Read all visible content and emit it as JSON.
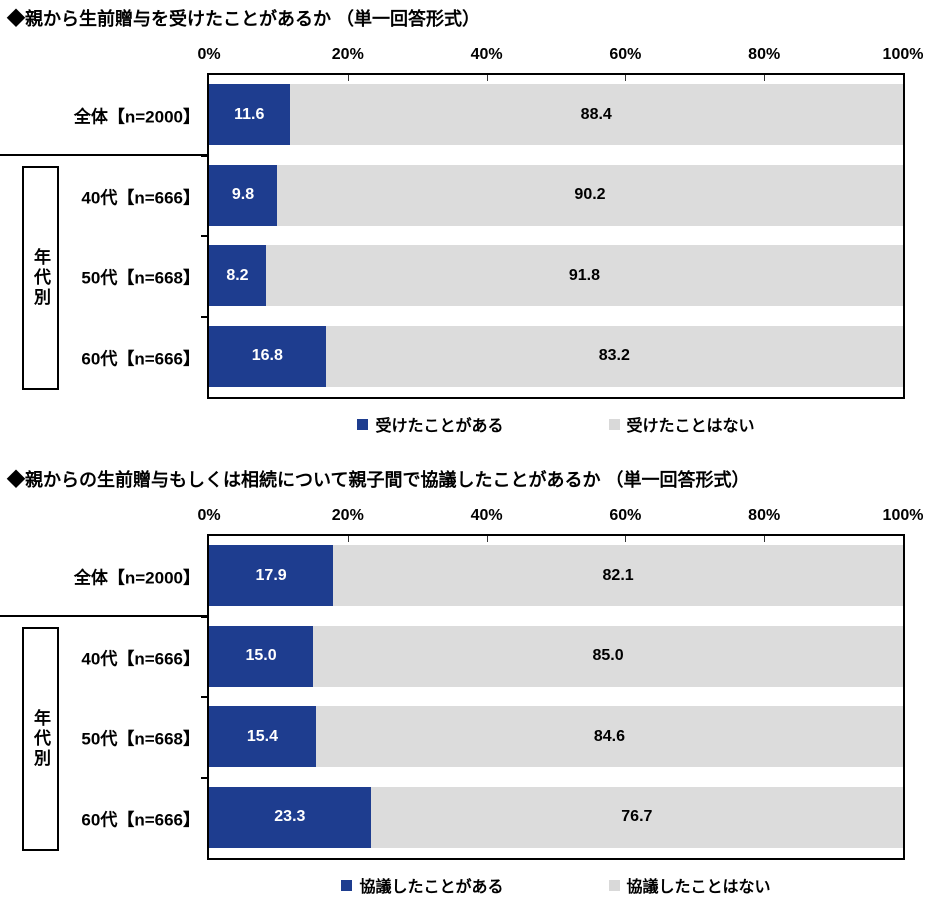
{
  "colors": {
    "background": "#ffffff",
    "bar_yes": "#1e3d8f",
    "bar_no": "#dcdcdc",
    "legend_no_swatch": "#d9d9d9",
    "border": "#000000"
  },
  "chart_data": [
    {
      "type": "bar",
      "orientation": "horizontal",
      "stacked": true,
      "title": "◆親から生前贈与を受けたことがあるか （単一回答形式）",
      "group_label": "年代別",
      "x_ticks": [
        "0%",
        "20%",
        "40%",
        "60%",
        "80%",
        "100%"
      ],
      "xlim": [
        0,
        100
      ],
      "grid": false,
      "legend_position": "bottom",
      "value_labels": "inside",
      "categories": [
        "全体【n=2000】",
        "40代【n=666】",
        "50代【n=668】",
        "60代【n=666】"
      ],
      "series": [
        {
          "name": "受けたことがある",
          "color": "#1e3d8f",
          "values": [
            11.6,
            9.8,
            8.2,
            16.8
          ]
        },
        {
          "name": "受けたことはない",
          "color": "#dcdcdc",
          "values": [
            88.4,
            90.2,
            91.8,
            83.2
          ]
        }
      ]
    },
    {
      "type": "bar",
      "orientation": "horizontal",
      "stacked": true,
      "title": "◆親からの生前贈与もしくは相続について親子間で協議したことがあるか （単一回答形式）",
      "group_label": "年代別",
      "x_ticks": [
        "0%",
        "20%",
        "40%",
        "60%",
        "80%",
        "100%"
      ],
      "xlim": [
        0,
        100
      ],
      "grid": false,
      "legend_position": "bottom",
      "value_labels": "inside",
      "categories": [
        "全体【n=2000】",
        "40代【n=666】",
        "50代【n=668】",
        "60代【n=666】"
      ],
      "series": [
        {
          "name": "協議したことがある",
          "color": "#1e3d8f",
          "values": [
            17.9,
            15.0,
            15.4,
            23.3
          ]
        },
        {
          "name": "協議したことはない",
          "color": "#dcdcdc",
          "values": [
            82.1,
            85.0,
            84.6,
            76.7
          ]
        }
      ]
    }
  ]
}
